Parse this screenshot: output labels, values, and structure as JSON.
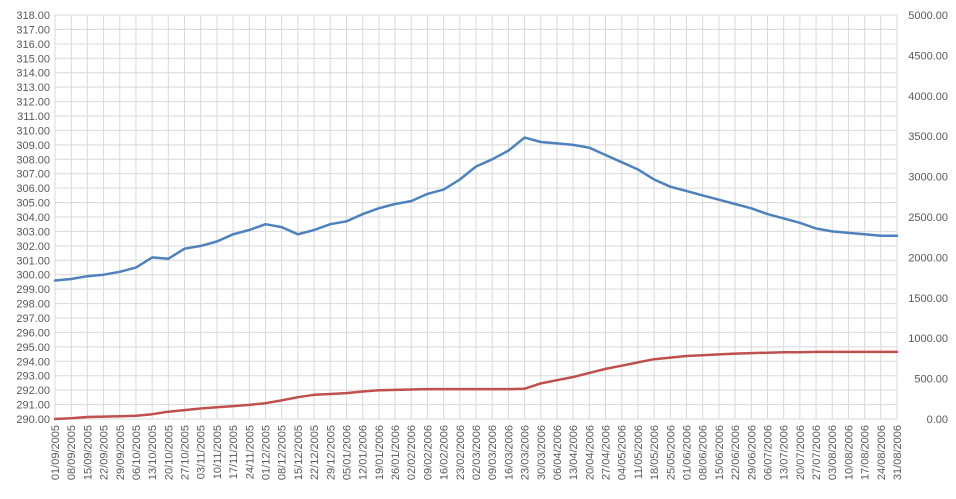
{
  "chart_data": {
    "type": "line",
    "title": "",
    "xlabel": "",
    "ylabel": "",
    "y2label": "",
    "grid": true,
    "legend": "none",
    "colors": {
      "series_left": "#4f81bd",
      "series_right": "#c0504d",
      "grid": "#d9d9d9",
      "axis_text": "#595959"
    },
    "ylim": [
      290,
      318
    ],
    "y2lim": [
      0,
      5000
    ],
    "y_ticks": [
      "290.00",
      "291.00",
      "292.00",
      "293.00",
      "294.00",
      "295.00",
      "296.00",
      "297.00",
      "298.00",
      "299.00",
      "300.00",
      "301.00",
      "302.00",
      "303.00",
      "304.00",
      "305.00",
      "306.00",
      "307.00",
      "308.00",
      "309.00",
      "310.00",
      "311.00",
      "312.00",
      "313.00",
      "314.00",
      "315.00",
      "316.00",
      "317.00",
      "318.00"
    ],
    "y2_ticks": [
      "0.00",
      "500.00",
      "1000.00",
      "1500.00",
      "2000.00",
      "2500.00",
      "3000.00",
      "3500.00",
      "4000.00",
      "4500.00",
      "5000.00"
    ],
    "x_ticks": [
      "01/09/2005",
      "08/09/2005",
      "15/09/2005",
      "22/09/2005",
      "29/09/2005",
      "06/10/2005",
      "13/10/2005",
      "20/10/2005",
      "27/10/2005",
      "03/11/2005",
      "10/11/2005",
      "17/11/2005",
      "24/11/2005",
      "01/12/2005",
      "08/12/2005",
      "15/12/2005",
      "22/12/2005",
      "29/12/2005",
      "05/01/2006",
      "12/01/2006",
      "19/01/2006",
      "26/01/2006",
      "02/02/2006",
      "09/02/2006",
      "16/02/2006",
      "23/02/2006",
      "02/03/2006",
      "09/03/2006",
      "16/03/2006",
      "23/03/2006",
      "30/03/2006",
      "06/04/2006",
      "13/04/2006",
      "20/04/2006",
      "27/04/2006",
      "04/05/2006",
      "11/05/2006",
      "18/05/2006",
      "25/05/2006",
      "01/06/2006",
      "08/06/2006",
      "15/06/2006",
      "22/06/2006",
      "29/06/2006",
      "06/07/2006",
      "13/07/2006",
      "20/07/2006",
      "27/07/2006",
      "03/08/2006",
      "10/08/2006",
      "17/08/2006",
      "24/08/2006",
      "31/08/2006"
    ],
    "series": [
      {
        "axis": "left",
        "color": "#4f81bd",
        "values": [
          299.6,
          299.7,
          299.9,
          300.0,
          300.2,
          300.5,
          301.2,
          301.1,
          301.8,
          302.0,
          302.3,
          302.8,
          303.1,
          303.5,
          303.3,
          302.8,
          303.1,
          303.5,
          303.7,
          304.2,
          304.6,
          304.9,
          305.1,
          305.6,
          305.9,
          306.6,
          307.5,
          308.0,
          308.6,
          309.5,
          309.2,
          309.1,
          309.0,
          308.8,
          308.3,
          307.8,
          307.3,
          306.6,
          306.1,
          305.8,
          305.5,
          305.2,
          304.9,
          304.6,
          304.2,
          303.9,
          303.6,
          303.2,
          303.0,
          302.9,
          302.8,
          302.7,
          302.7
        ]
      },
      {
        "axis": "right",
        "color": "#c0504d",
        "values": [
          0,
          10,
          25,
          30,
          35,
          40,
          60,
          90,
          110,
          130,
          145,
          160,
          175,
          195,
          230,
          270,
          300,
          310,
          320,
          340,
          355,
          360,
          365,
          370,
          370,
          370,
          370,
          370,
          370,
          375,
          440,
          480,
          520,
          570,
          620,
          660,
          700,
          740,
          760,
          780,
          790,
          800,
          810,
          815,
          820,
          825,
          825,
          830,
          830,
          830,
          830,
          830,
          830
        ]
      }
    ]
  }
}
